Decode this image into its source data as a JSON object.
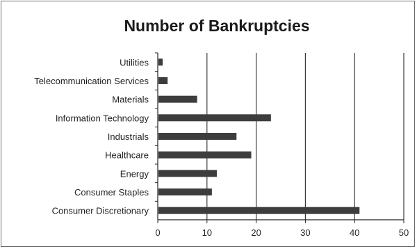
{
  "chart_data": {
    "type": "bar",
    "orientation": "horizontal",
    "title": "Number of Bankruptcies",
    "xlabel": "",
    "ylabel": "",
    "categories": [
      "Utilities",
      "Telecommunication Services",
      "Materials",
      "Information Technology",
      "Industrials",
      "Healthcare",
      "Energy",
      "Consumer Staples",
      "Consumer Discretionary"
    ],
    "values": [
      1,
      2,
      8,
      23,
      16,
      19,
      12,
      11,
      41
    ],
    "xlim": [
      0,
      50
    ],
    "xticks": [
      "0",
      "10",
      "20",
      "30",
      "40",
      "50"
    ],
    "grid": "vertical",
    "legend": "none",
    "colors": {
      "bar": "#3d3d3d",
      "grid": "#3a3a3a",
      "axis": "#222222",
      "text": "#222222"
    }
  }
}
